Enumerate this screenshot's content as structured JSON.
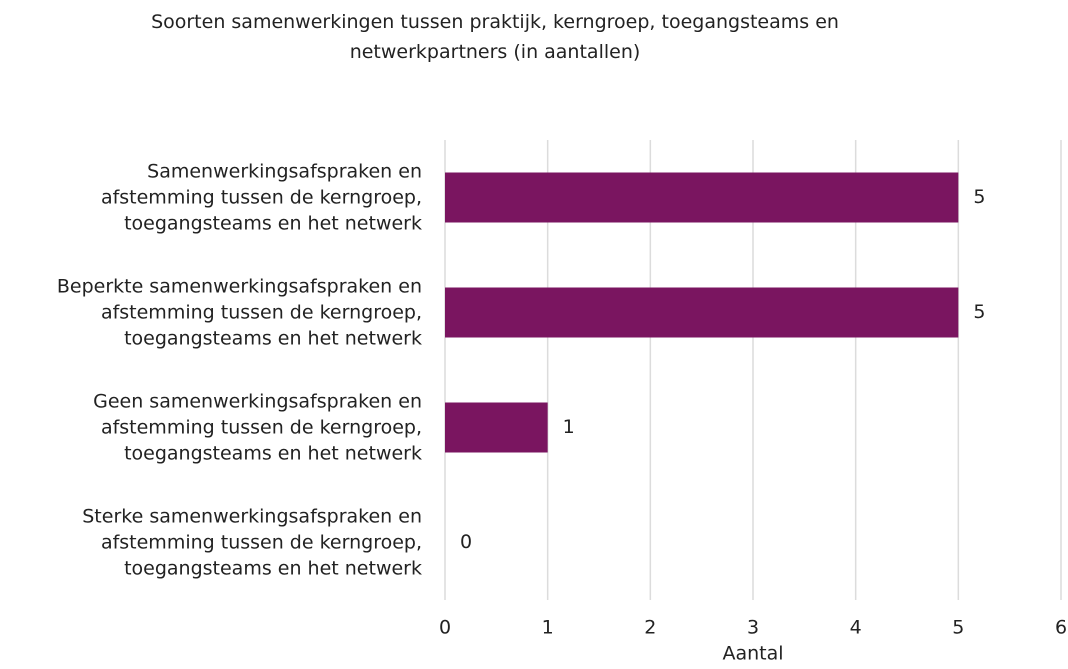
{
  "chart_data": {
    "type": "bar",
    "orientation": "horizontal",
    "title": "Soorten samenwerkingen tussen praktijk, kerngroep, toegangsteams en\nnetwerkpartners (in aantallen)",
    "categories": [
      "Samenwerkingsafspraken en\nafstemming tussen de kerngroep,\ntoegangsteams en het netwerk",
      "Beperkte samenwerkingsafspraken en\nafstemming tussen de kerngroep,\ntoegangsteams en het netwerk",
      "Geen samenwerkingsafspraken en\nafstemming tussen de kerngroep,\ntoegangsteams en het netwerk",
      "Sterke samenwerkingsafspraken en\nafstemming tussen de kerngroep,\ntoegangsteams en het netwerk"
    ],
    "values": [
      5,
      5,
      1,
      0
    ],
    "color": "#7a1560",
    "xlabel": "Aantal",
    "xlim": [
      0,
      6
    ],
    "xticks": [
      0,
      1,
      2,
      3,
      4,
      5,
      6
    ],
    "grid": true
  }
}
